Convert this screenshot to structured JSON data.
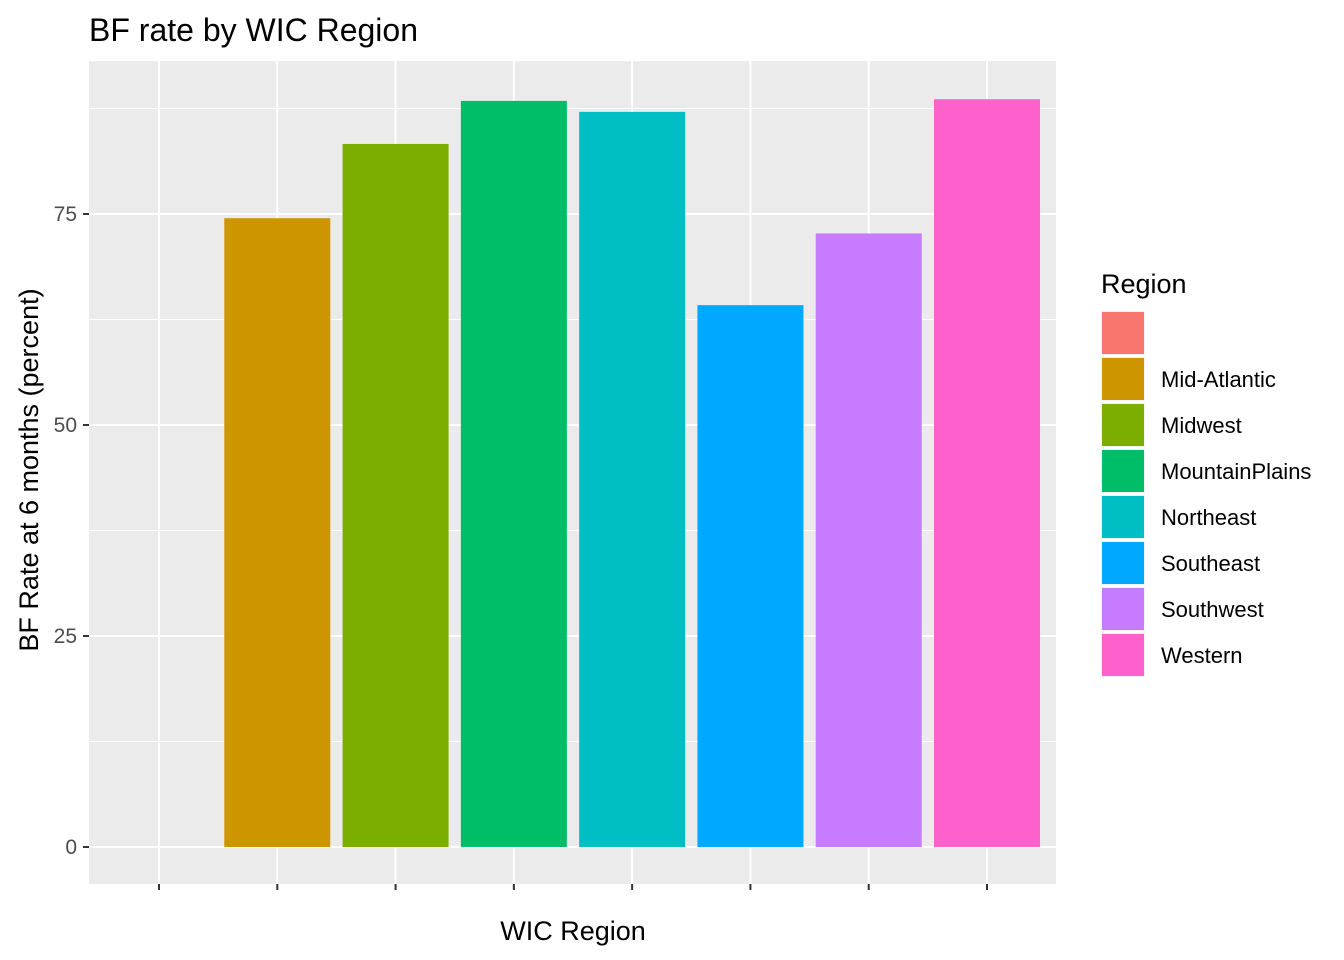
{
  "chart_data": {
    "type": "bar",
    "title": "BF rate by WIC Region",
    "xlabel": "WIC Region",
    "ylabel": "BF Rate at 6 months (percent)",
    "ylim": [
      0,
      90
    ],
    "yticks": [
      0,
      25,
      50,
      75
    ],
    "grid": true,
    "categories": [
      "",
      "Mid-Atlantic",
      "Midwest",
      "MountainPlains",
      "Northeast",
      "Southeast",
      "Southwest",
      "Western"
    ],
    "values": [
      0,
      74.5,
      83.3,
      88.4,
      87.1,
      64.2,
      72.7,
      88.6
    ],
    "colors": [
      "#F8766D",
      "#CD9600",
      "#7CAE00",
      "#00BE67",
      "#00BFC4",
      "#00A9FF",
      "#C77CFF",
      "#FF61CC"
    ],
    "legend": {
      "title": "Region",
      "position": "right"
    }
  }
}
